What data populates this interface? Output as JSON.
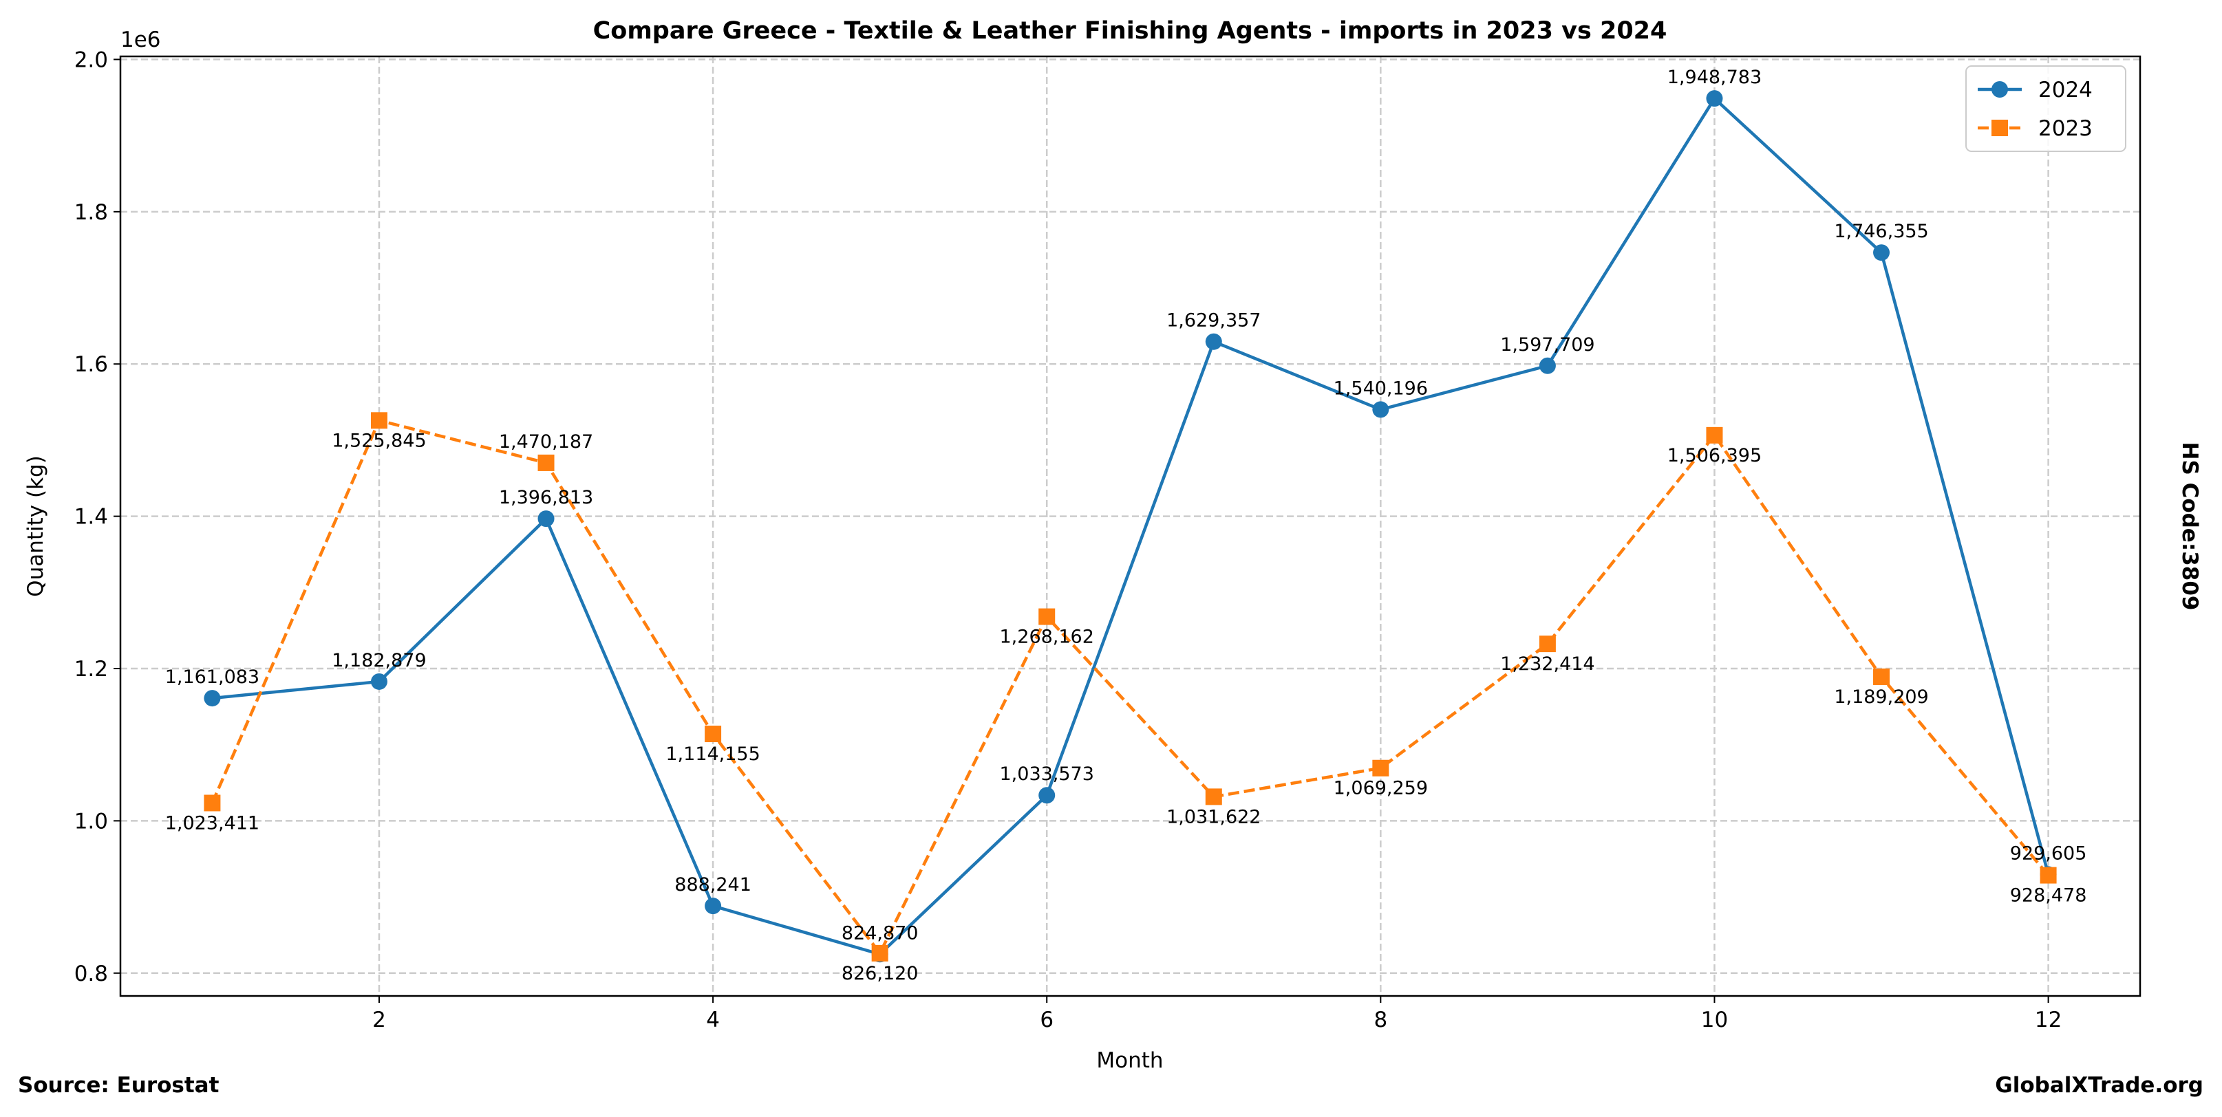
{
  "chart_data": {
    "type": "line",
    "title": "Compare Greece - Textile & Leather Finishing Agents - imports in 2023 vs 2024",
    "xlabel": "Month",
    "ylabel": "Quantity (kg)",
    "y_offset_label": "1e6",
    "xlim": [
      0.45,
      12.55
    ],
    "ylim": [
      770000,
      2004000
    ],
    "xticks": [
      2,
      4,
      6,
      8,
      10,
      12
    ],
    "yticks": [
      800000,
      1000000,
      1200000,
      1400000,
      1600000,
      1800000,
      2000000
    ],
    "ytick_labels": [
      "0.8",
      "1.0",
      "1.2",
      "1.4",
      "1.6",
      "1.8",
      "2.0"
    ],
    "grid": true,
    "legend_placement": "top-right",
    "x": [
      1,
      2,
      3,
      4,
      5,
      6,
      7,
      8,
      9,
      10,
      11,
      12
    ],
    "series": [
      {
        "name": "2024",
        "color": "#1f77b4",
        "marker": "circle",
        "linestyle": "solid",
        "values": [
          1161083,
          1182879,
          1396813,
          888241,
          824870,
          1033573,
          1629357,
          1540196,
          1597709,
          1948783,
          1746355,
          929605
        ]
      },
      {
        "name": "2023",
        "color": "#ff7f0e",
        "marker": "square",
        "linestyle": "dashed",
        "values": [
          1023411,
          1525845,
          1470187,
          1114155,
          826120,
          1268162,
          1031622,
          1069259,
          1232414,
          1506395,
          1189209,
          928478
        ]
      }
    ]
  },
  "side_label": "HS Code:3809",
  "footer": {
    "source": "Source: Eurostat",
    "site": "GlobalXTrade.org"
  }
}
